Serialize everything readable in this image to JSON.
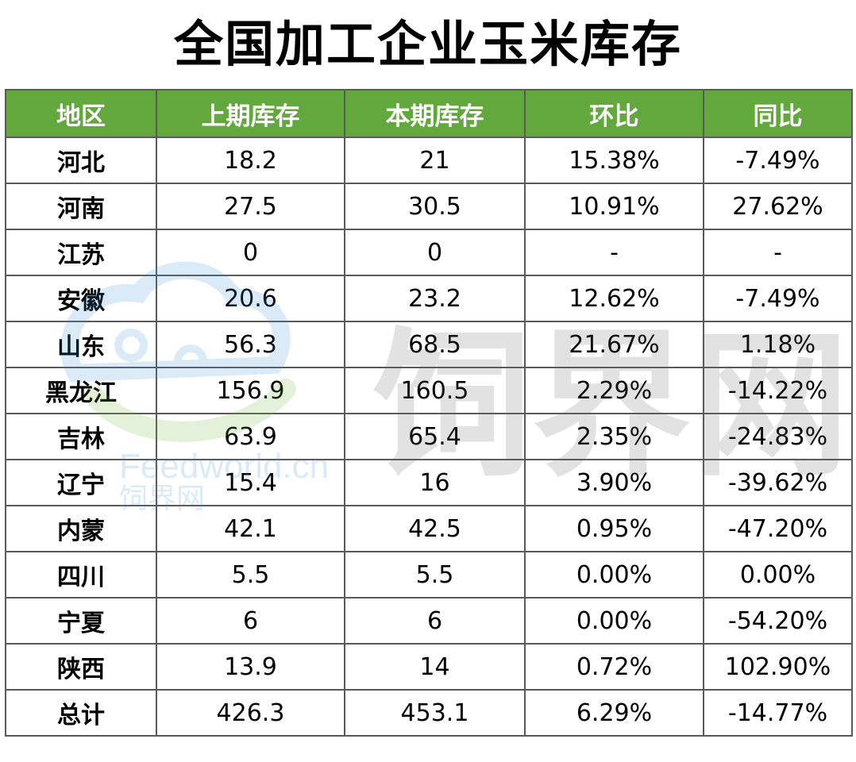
{
  "title": "全国加工企业玉米库存",
  "table": {
    "headers": [
      "地区",
      "上期库存",
      "本期库存",
      "环比",
      "同比"
    ],
    "rows": [
      {
        "region": "河北",
        "prev": "18.2",
        "curr": "21",
        "mom": "15.38%",
        "mom_trend": "up",
        "yoy": "-7.49%",
        "yoy_trend": "down"
      },
      {
        "region": "河南",
        "prev": "27.5",
        "curr": "30.5",
        "mom": "10.91%",
        "mom_trend": "up",
        "yoy": "27.62%",
        "yoy_trend": "up"
      },
      {
        "region": "江苏",
        "prev": "0",
        "curr": "0",
        "mom": "-",
        "mom_trend": "flat",
        "yoy": "-",
        "yoy_trend": "flat"
      },
      {
        "region": "安徽",
        "prev": "20.6",
        "curr": "23.2",
        "mom": "12.62%",
        "mom_trend": "up",
        "yoy": "-7.49%",
        "yoy_trend": "down"
      },
      {
        "region": "山东",
        "prev": "56.3",
        "curr": "68.5",
        "mom": "21.67%",
        "mom_trend": "up",
        "yoy": "1.18%",
        "yoy_trend": "up"
      },
      {
        "region": "黑龙江",
        "prev": "156.9",
        "curr": "160.5",
        "mom": "2.29%",
        "mom_trend": "up",
        "yoy": "-14.22%",
        "yoy_trend": "down"
      },
      {
        "region": "吉林",
        "prev": "63.9",
        "curr": "65.4",
        "mom": "2.35%",
        "mom_trend": "up",
        "yoy": "-24.83%",
        "yoy_trend": "down"
      },
      {
        "region": "辽宁",
        "prev": "15.4",
        "curr": "16",
        "mom": "3.90%",
        "mom_trend": "up",
        "yoy": "-39.62%",
        "yoy_trend": "down"
      },
      {
        "region": "内蒙",
        "prev": "42.1",
        "curr": "42.5",
        "mom": "0.95%",
        "mom_trend": "up",
        "yoy": "-47.20%",
        "yoy_trend": "down"
      },
      {
        "region": "四川",
        "prev": "5.5",
        "curr": "5.5",
        "mom": "0.00%",
        "mom_trend": "flat",
        "yoy": "0.00%",
        "yoy_trend": "flat"
      },
      {
        "region": "宁夏",
        "prev": "6",
        "curr": "6",
        "mom": "0.00%",
        "mom_trend": "flat",
        "yoy": "-54.20%",
        "yoy_trend": "down"
      },
      {
        "region": "陕西",
        "prev": "13.9",
        "curr": "14",
        "mom": "0.72%",
        "mom_trend": "up",
        "yoy": "102.90%",
        "yoy_trend": "up"
      },
      {
        "region": "总计",
        "prev": "426.3",
        "curr": "453.1",
        "mom": "6.29%",
        "mom_trend": "up",
        "yoy": "-14.77%",
        "yoy_trend": "down"
      }
    ]
  },
  "colors": {
    "header_bg": "#63a83c",
    "increase": "#e30f14",
    "decrease": "#5aab2e"
  },
  "watermark": {
    "brand_text": "饲界网",
    "domain_text": "Feedworld.cn",
    "logo_icon": "feedworld-logo-icon"
  }
}
